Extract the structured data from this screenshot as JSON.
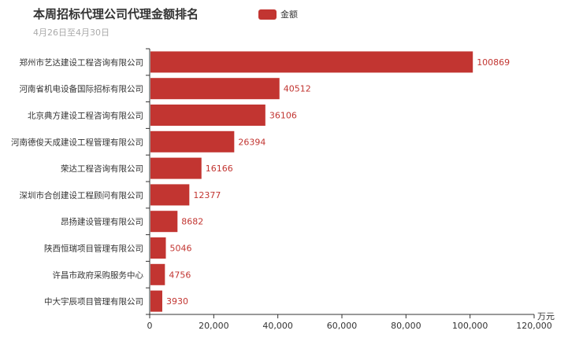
{
  "chart_data": {
    "type": "bar",
    "orientation": "horizontal",
    "title": "本周招标代理公司代理金额排名",
    "subtitle": "4月26日至4月30日",
    "legend": [
      "金额"
    ],
    "legend_position": "top",
    "xlabel": "万元",
    "ylabel": "",
    "xlim": [
      0,
      120000
    ],
    "xticks": [
      "0",
      "20,000",
      "40,000",
      "60,000",
      "80,000",
      "100,000",
      "120,000"
    ],
    "categories": [
      "郑州市艺达建设工程咨询有限公司",
      "河南省机电设备国际招标有限公司",
      "北京典方建设工程咨询有限公司",
      "河南德俊天成建设工程管理有限公司",
      "荣达工程咨询有限公司",
      "深圳市合创建设工程顾问有限公司",
      "昂扬建设管理有限公司",
      "陕西恒瑞项目管理有限公司",
      "许昌市政府采购服务中心",
      "中大宇辰项目管理有限公司"
    ],
    "series": [
      {
        "name": "金额",
        "values": [
          100869,
          40512,
          36106,
          26394,
          16166,
          12377,
          8682,
          5046,
          4756,
          3930
        ],
        "color": "#c23531"
      }
    ]
  }
}
